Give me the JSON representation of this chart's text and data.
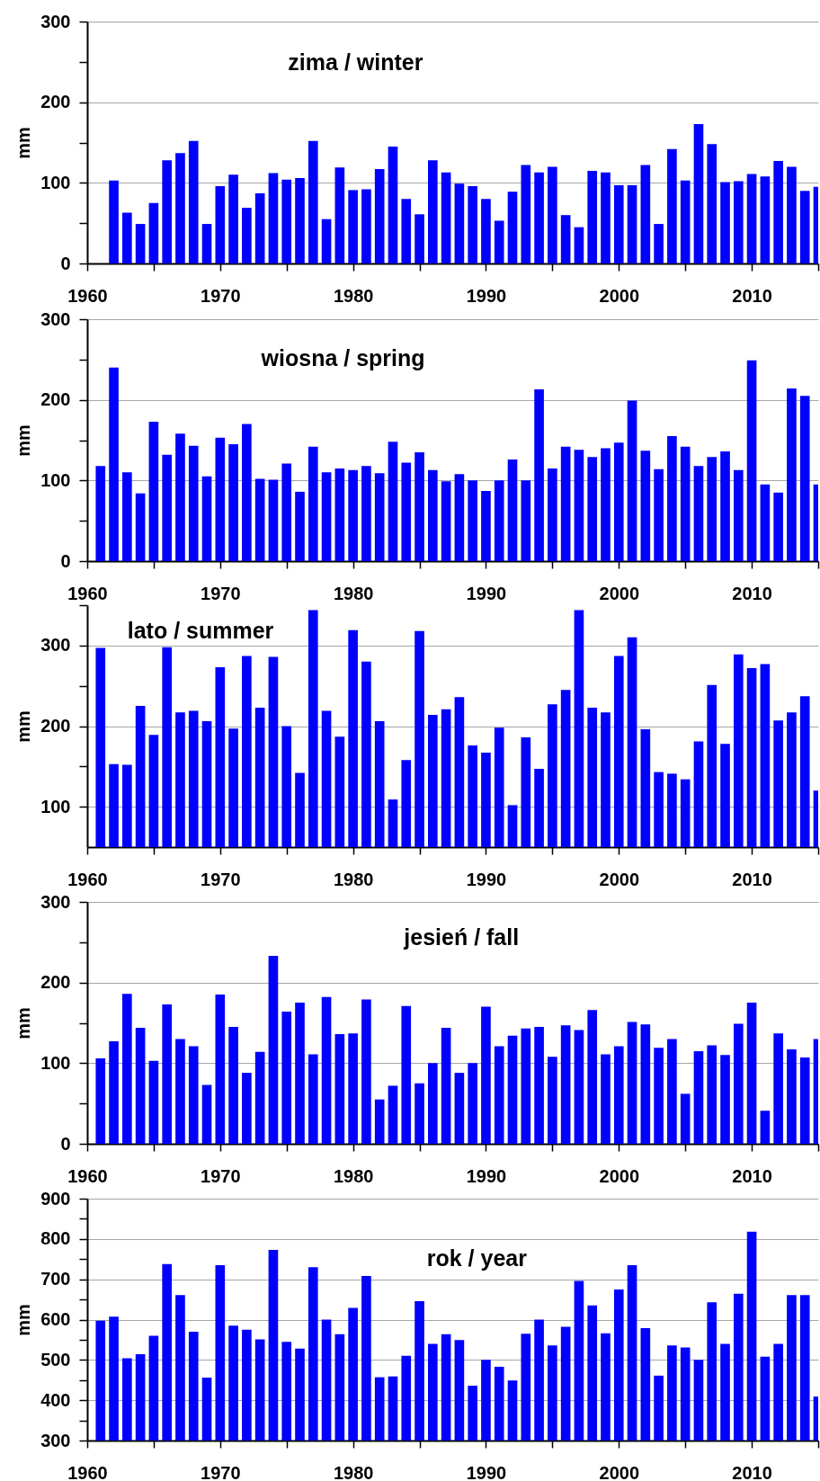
{
  "chart_data": [
    {
      "type": "bar",
      "title": "zima / winter",
      "ylabel": "mm",
      "color": "#0000ff",
      "grid": "y",
      "xlim": [
        1960,
        2015
      ],
      "xticks": [
        1960,
        {
          "value": 1965,
          "label": null
        },
        1970,
        {
          "value": 1975,
          "label": null
        },
        1980,
        {
          "value": 1985,
          "label": null
        },
        1990,
        {
          "value": 1995,
          "label": null
        },
        2000,
        {
          "value": 2005,
          "label": null
        },
        2010,
        {
          "value": 2015,
          "label": null
        }
      ],
      "ylim": [
        0,
        300
      ],
      "yticks": [
        0,
        {
          "value": 50,
          "label": null
        },
        100,
        {
          "value": 150,
          "label": null
        },
        200,
        {
          "value": 250,
          "label": null
        },
        300
      ],
      "x": [
        1962,
        1963,
        1964,
        1965,
        1966,
        1967,
        1968,
        1969,
        1970,
        1971,
        1972,
        1973,
        1974,
        1975,
        1976,
        1977,
        1978,
        1979,
        1980,
        1981,
        1982,
        1983,
        1984,
        1985,
        1986,
        1987,
        1988,
        1989,
        1990,
        1991,
        1992,
        1993,
        1994,
        1995,
        1996,
        1997,
        1998,
        1999,
        2000,
        2001,
        2002,
        2003,
        2004,
        2005,
        2006,
        2007,
        2008,
        2009,
        2010,
        2011,
        2012,
        2013,
        2014,
        2015
      ],
      "values": [
        103,
        63,
        49,
        75,
        128,
        137,
        152,
        49,
        96,
        110,
        69,
        87,
        112,
        104,
        106,
        152,
        55,
        119,
        91,
        92,
        117,
        145,
        80,
        61,
        128,
        113,
        99,
        96,
        80,
        53,
        89,
        122,
        113,
        120,
        60,
        45,
        115,
        113,
        97,
        97,
        122,
        49,
        142,
        103,
        173,
        148,
        101,
        102,
        111,
        108,
        127,
        120,
        90,
        95
      ]
    },
    {
      "type": "bar",
      "title": "wiosna / spring",
      "ylabel": "mm",
      "color": "#0000ff",
      "grid": "y",
      "xlim": [
        1960,
        2015
      ],
      "xticks": [
        1960,
        {
          "value": 1965,
          "label": null
        },
        1970,
        {
          "value": 1975,
          "label": null
        },
        1980,
        {
          "value": 1985,
          "label": null
        },
        1990,
        {
          "value": 1995,
          "label": null
        },
        2000,
        {
          "value": 2005,
          "label": null
        },
        2010,
        {
          "value": 2015,
          "label": null
        }
      ],
      "ylim": [
        0,
        300
      ],
      "yticks": [
        0,
        {
          "value": 50,
          "label": null
        },
        100,
        {
          "value": 150,
          "label": null
        },
        200,
        {
          "value": 250,
          "label": null
        },
        300
      ],
      "x": [
        1961,
        1962,
        1963,
        1964,
        1965,
        1966,
        1967,
        1968,
        1969,
        1970,
        1971,
        1972,
        1973,
        1974,
        1975,
        1976,
        1977,
        1978,
        1979,
        1980,
        1981,
        1982,
        1983,
        1984,
        1985,
        1986,
        1987,
        1988,
        1989,
        1990,
        1991,
        1992,
        1993,
        1994,
        1995,
        1996,
        1997,
        1998,
        1999,
        2000,
        2001,
        2002,
        2003,
        2004,
        2005,
        2006,
        2007,
        2008,
        2009,
        2010,
        2011,
        2012,
        2013,
        2014,
        2015
      ],
      "values": [
        118,
        240,
        110,
        84,
        173,
        132,
        158,
        143,
        105,
        153,
        145,
        170,
        102,
        101,
        121,
        86,
        142,
        110,
        115,
        113,
        118,
        109,
        148,
        122,
        135,
        113,
        99,
        108,
        100,
        87,
        100,
        126,
        100,
        213,
        115,
        142,
        138,
        129,
        140,
        147,
        199,
        137,
        114,
        155,
        142,
        118,
        129,
        136,
        113,
        249,
        95,
        85,
        214,
        205,
        95
      ]
    },
    {
      "type": "bar",
      "title": "lato / summer",
      "ylabel": "mm",
      "color": "#0000ff",
      "grid": "y",
      "xlim": [
        1960,
        2015
      ],
      "xticks": [
        1960,
        {
          "value": 1965,
          "label": null
        },
        1970,
        {
          "value": 1975,
          "label": null
        },
        1980,
        {
          "value": 1985,
          "label": null
        },
        1990,
        {
          "value": 1995,
          "label": null
        },
        2000,
        {
          "value": 2005,
          "label": null
        },
        2010,
        {
          "value": 2015,
          "label": null
        }
      ],
      "ylim": [
        50,
        350
      ],
      "yticks": [
        100,
        {
          "value": 150,
          "label": null
        },
        200,
        {
          "value": 250,
          "label": null
        },
        300,
        {
          "value": 350,
          "label": null
        }
      ],
      "x": [
        1961,
        1962,
        1963,
        1964,
        1965,
        1966,
        1967,
        1968,
        1969,
        1970,
        1971,
        1972,
        1973,
        1974,
        1975,
        1976,
        1977,
        1978,
        1979,
        1980,
        1981,
        1982,
        1983,
        1984,
        1985,
        1986,
        1987,
        1988,
        1989,
        1990,
        1991,
        1992,
        1993,
        1994,
        1995,
        1996,
        1997,
        1998,
        1999,
        2000,
        2001,
        2002,
        2003,
        2004,
        2005,
        2006,
        2007,
        2008,
        2009,
        2010,
        2011,
        2012,
        2013,
        2014,
        2015
      ],
      "values": [
        297,
        153,
        152,
        225,
        189,
        298,
        217,
        219,
        206,
        273,
        197,
        287,
        223,
        286,
        200,
        142,
        344,
        219,
        187,
        319,
        280,
        206,
        109,
        158,
        318,
        214,
        221,
        236,
        176,
        167,
        198,
        102,
        186,
        147,
        227,
        245,
        344,
        223,
        217,
        287,
        310,
        196,
        143,
        141,
        134,
        181,
        251,
        178,
        289,
        272,
        277,
        207,
        217,
        237,
        120
      ]
    },
    {
      "type": "bar",
      "title": "jesień / fall",
      "ylabel": "mm",
      "color": "#0000ff",
      "grid": "y",
      "xlim": [
        1960,
        2015
      ],
      "xticks": [
        1960,
        {
          "value": 1965,
          "label": null
        },
        1970,
        {
          "value": 1975,
          "label": null
        },
        1980,
        {
          "value": 1985,
          "label": null
        },
        1990,
        {
          "value": 1995,
          "label": null
        },
        2000,
        {
          "value": 2005,
          "label": null
        },
        2010,
        {
          "value": 2015,
          "label": null
        }
      ],
      "ylim": [
        0,
        300
      ],
      "yticks": [
        0,
        {
          "value": 50,
          "label": null
        },
        100,
        {
          "value": 150,
          "label": null
        },
        200,
        {
          "value": 250,
          "label": null
        },
        300
      ],
      "x": [
        1961,
        1962,
        1963,
        1964,
        1965,
        1966,
        1967,
        1968,
        1969,
        1970,
        1971,
        1972,
        1973,
        1974,
        1975,
        1976,
        1977,
        1978,
        1979,
        1980,
        1981,
        1982,
        1983,
        1984,
        1985,
        1986,
        1987,
        1988,
        1989,
        1990,
        1991,
        1992,
        1993,
        1994,
        1995,
        1996,
        1997,
        1998,
        1999,
        2000,
        2001,
        2002,
        2003,
        2004,
        2005,
        2006,
        2007,
        2008,
        2009,
        2010,
        2011,
        2012,
        2013,
        2014,
        2015
      ],
      "values": [
        106,
        127,
        186,
        144,
        103,
        173,
        130,
        121,
        73,
        185,
        145,
        88,
        114,
        233,
        164,
        175,
        111,
        182,
        136,
        137,
        179,
        55,
        72,
        171,
        75,
        100,
        144,
        88,
        100,
        170,
        121,
        134,
        143,
        145,
        108,
        147,
        141,
        166,
        111,
        121,
        151,
        148,
        119,
        130,
        62,
        115,
        122,
        110,
        149,
        175,
        41,
        137,
        117,
        107,
        130
      ]
    },
    {
      "type": "bar",
      "title": "rok / year",
      "ylabel": "mm",
      "color": "#0000ff",
      "grid": "y",
      "xlim": [
        1960,
        2015
      ],
      "xticks": [
        1960,
        {
          "value": 1965,
          "label": null
        },
        1970,
        {
          "value": 1975,
          "label": null
        },
        1980,
        {
          "value": 1985,
          "label": null
        },
        1990,
        {
          "value": 1995,
          "label": null
        },
        2000,
        {
          "value": 2005,
          "label": null
        },
        2010,
        {
          "value": 2015,
          "label": null
        }
      ],
      "ylim": [
        300,
        900
      ],
      "yticks": [
        300,
        {
          "value": 350,
          "label": null
        },
        400,
        {
          "value": 450,
          "label": null
        },
        500,
        {
          "value": 550,
          "label": null
        },
        600,
        {
          "value": 650,
          "label": null
        },
        700,
        {
          "value": 750,
          "label": null
        },
        800,
        {
          "value": 850,
          "label": null
        },
        900
      ],
      "x": [
        1961,
        1962,
        1963,
        1964,
        1965,
        1966,
        1967,
        1968,
        1969,
        1970,
        1971,
        1972,
        1973,
        1974,
        1975,
        1976,
        1977,
        1978,
        1979,
        1980,
        1981,
        1982,
        1983,
        1984,
        1985,
        1986,
        1987,
        1988,
        1989,
        1990,
        1991,
        1992,
        1993,
        1994,
        1995,
        1996,
        1997,
        1998,
        1999,
        2000,
        2001,
        2002,
        2003,
        2004,
        2005,
        2006,
        2007,
        2008,
        2009,
        2010,
        2011,
        2012,
        2013,
        2014,
        2015
      ],
      "values": [
        597,
        607,
        504,
        514,
        560,
        738,
        661,
        570,
        456,
        735,
        585,
        575,
        551,
        773,
        545,
        528,
        730,
        600,
        564,
        629,
        708,
        457,
        459,
        510,
        646,
        540,
        564,
        549,
        436,
        500,
        483,
        449,
        565,
        600,
        536,
        582,
        696,
        635,
        566,
        675,
        735,
        579,
        461,
        536,
        531,
        500,
        643,
        540,
        664,
        818,
        508,
        540,
        661,
        661,
        409
      ]
    }
  ]
}
